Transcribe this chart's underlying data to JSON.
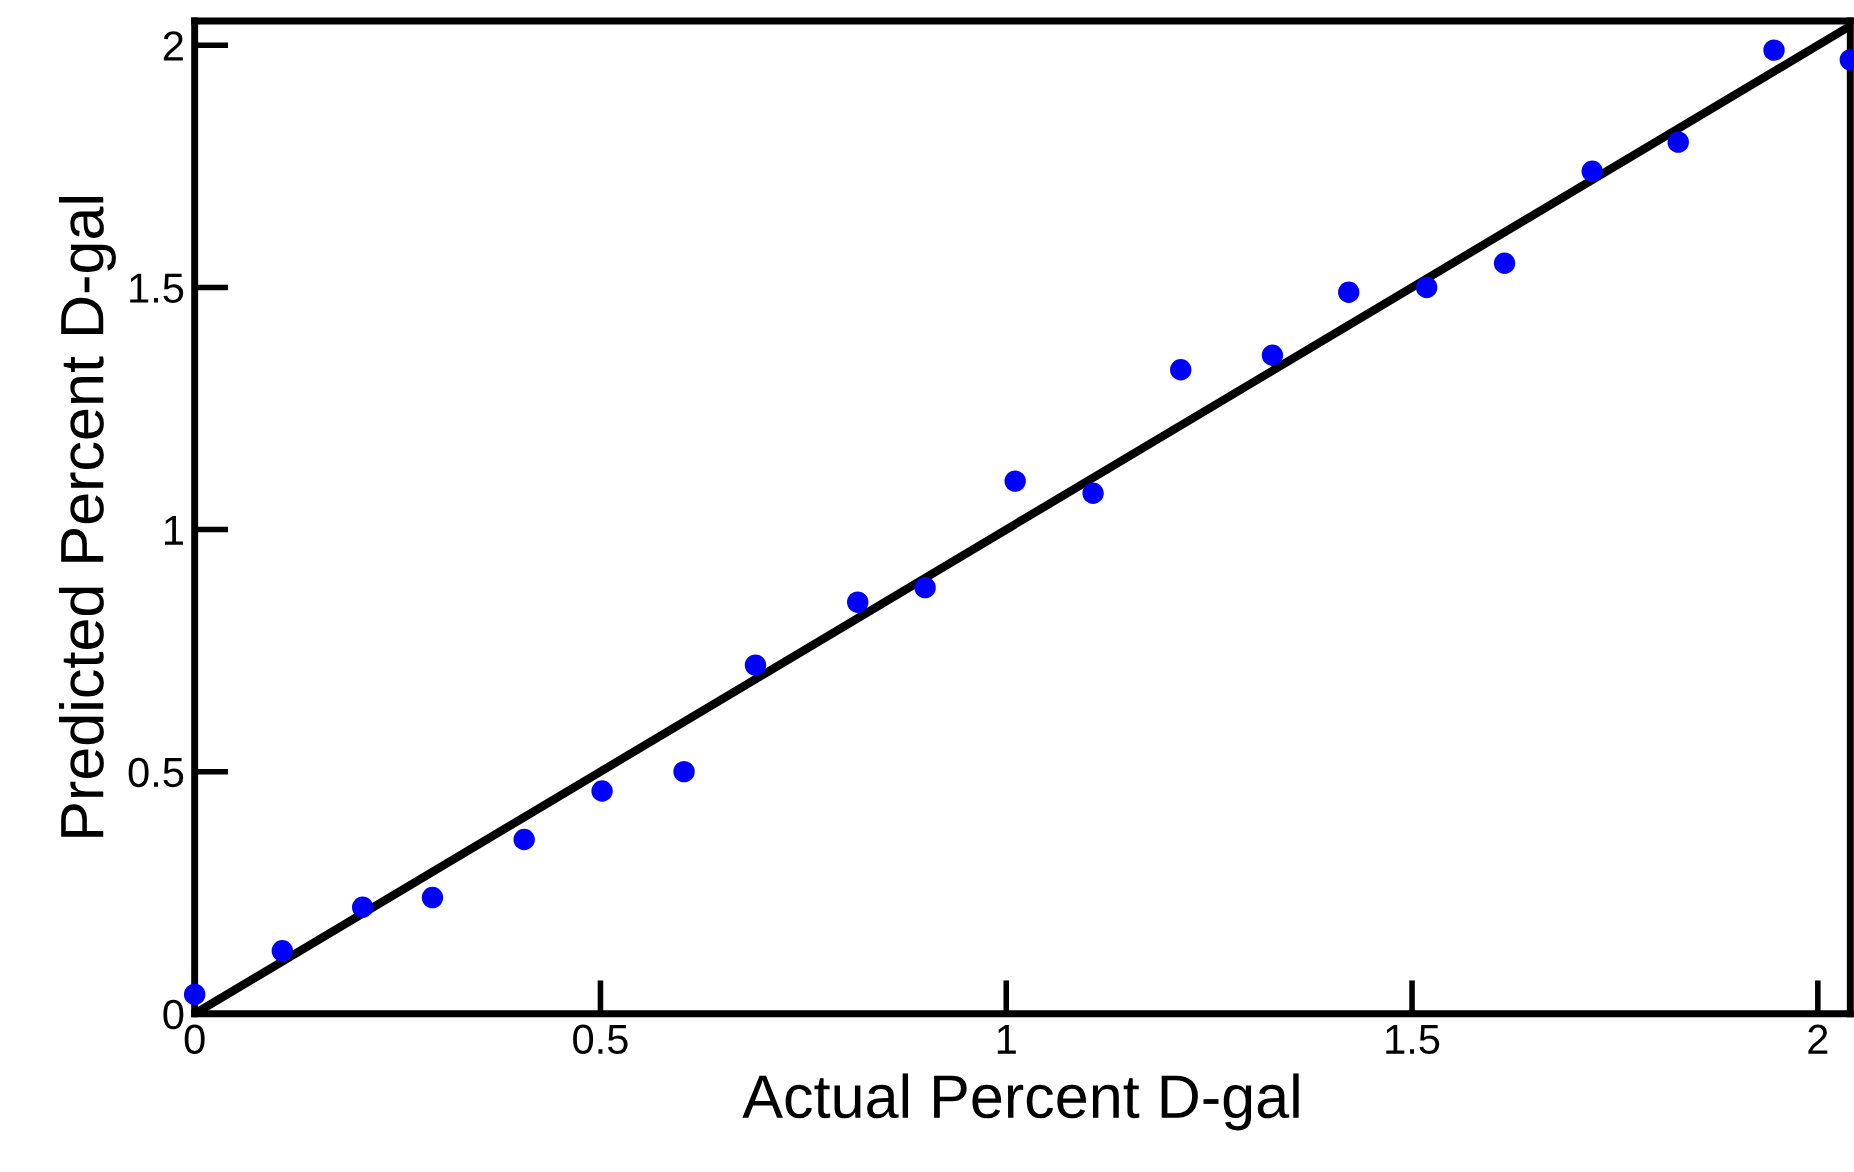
{
  "chart_data": {
    "type": "scatter",
    "xlabel": "Actual Percent D-gal",
    "ylabel": "Predicted Percent D-gal",
    "xlim": [
      0,
      2.04
    ],
    "ylim": [
      0,
      2.05
    ],
    "xticks": [
      0,
      0.5,
      1,
      1.5,
      2
    ],
    "yticks": [
      0,
      0.5,
      1,
      1.5,
      2
    ],
    "grid": false,
    "legend": false,
    "series": [
      {
        "color": "#0000ff",
        "marker": "circle",
        "x": [
          0,
          0.108,
          0.207,
          0.293,
          0.406,
          0.502,
          0.603,
          0.691,
          0.817,
          0.9,
          1.011,
          1.107,
          1.215,
          1.328,
          1.422,
          1.518,
          1.614,
          1.722,
          1.828,
          1.946,
          2.04
        ],
        "values": [
          0.04,
          0.13,
          0.22,
          0.24,
          0.36,
          0.46,
          0.5,
          0.72,
          0.85,
          0.88,
          1.1,
          1.075,
          1.33,
          1.36,
          1.49,
          1.5,
          1.55,
          1.74,
          1.8,
          1.99,
          1.97
        ]
      },
      {
        "type": "line",
        "color": "#000000",
        "line_style": "solid",
        "x": [
          0,
          2.04
        ],
        "values": [
          0,
          2.04
        ]
      }
    ]
  }
}
